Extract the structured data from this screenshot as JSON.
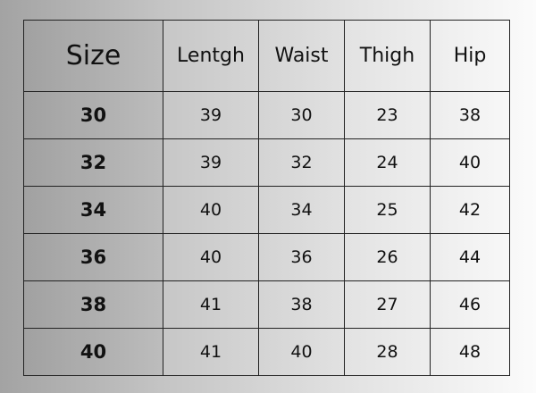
{
  "table": {
    "headers": [
      "Size",
      "Lentgh",
      "Waist",
      "Thigh",
      "Hip"
    ],
    "rows": [
      [
        "30",
        "39",
        "30",
        "23",
        "38"
      ],
      [
        "32",
        "39",
        "32",
        "24",
        "40"
      ],
      [
        "34",
        "40",
        "34",
        "25",
        "42"
      ],
      [
        "36",
        "40",
        "36",
        "26",
        "44"
      ],
      [
        "38",
        "41",
        "38",
        "27",
        "46"
      ],
      [
        "40",
        "41",
        "40",
        "28",
        "48"
      ]
    ]
  }
}
